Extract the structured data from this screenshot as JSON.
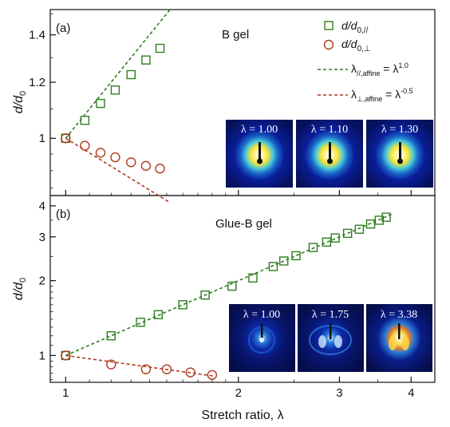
{
  "chart_data": [
    {
      "type": "scatter",
      "panel_label": "(a)",
      "title": "B gel",
      "ylabel": "d/d",
      "ylabel_sub": "0",
      "xscale": "log",
      "yscale": "log",
      "xlim": [
        0.94,
        4.4
      ],
      "ylim": [
        0.83,
        1.52
      ],
      "y_ticks": [
        1,
        1.2,
        1.4
      ],
      "y_tick_labels": [
        "1",
        "1.2",
        "1.4"
      ],
      "series": [
        {
          "name": "d/d",
          "name_sub": "0,//",
          "marker": "square",
          "color": "#2e7d1f",
          "x": [
            1.0,
            1.08,
            1.15,
            1.22,
            1.3,
            1.38,
            1.46
          ],
          "y": [
            1.0,
            1.06,
            1.12,
            1.17,
            1.23,
            1.29,
            1.34
          ]
        },
        {
          "name": "d/d",
          "name_sub": "0,⊥",
          "marker": "circle",
          "color": "#b03a1e",
          "x": [
            1.0,
            1.08,
            1.15,
            1.22,
            1.3,
            1.38,
            1.46
          ],
          "y": [
            1.0,
            0.976,
            0.954,
            0.94,
            0.925,
            0.914,
            0.906
          ]
        }
      ],
      "lines": [
        {
          "name": "λ",
          "name_sub": "//,affine",
          "name_eq": " = λ",
          "name_sup": "1.0",
          "style": "dashed",
          "color": "#2e7d1f",
          "exponent": 1.0,
          "x_range": [
            1.0,
            1.52
          ]
        },
        {
          "name": "λ",
          "name_sub": "⊥,affine",
          "name_eq": " = λ",
          "name_sup": "-0.5",
          "style": "dashed",
          "color": "#b03a1e",
          "exponent": -0.5,
          "x_range": [
            1.0,
            1.52
          ]
        }
      ],
      "insets": [
        {
          "label": "λ = 1.00"
        },
        {
          "label": "λ = 1.10"
        },
        {
          "label": "λ = 1.30"
        }
      ]
    },
    {
      "type": "scatter",
      "panel_label": "(b)",
      "title": "Glue-B gel",
      "xlabel": "Stretch ratio, λ",
      "ylabel": "d/d",
      "ylabel_sub": "0",
      "xscale": "log",
      "yscale": "log",
      "xlim": [
        0.94,
        4.4
      ],
      "ylim": [
        0.78,
        4.4
      ],
      "x_ticks": [
        1,
        2,
        3,
        4
      ],
      "x_tick_labels": [
        "1",
        "2",
        "3",
        "4"
      ],
      "y_ticks": [
        1,
        2,
        3,
        4
      ],
      "y_tick_labels": [
        "1",
        "2",
        "3",
        "4"
      ],
      "series": [
        {
          "name": "d/d",
          "name_sub": "0,//",
          "marker": "square",
          "color": "#2e7d1f",
          "x": [
            1.0,
            1.2,
            1.35,
            1.45,
            1.6,
            1.75,
            1.95,
            2.12,
            2.3,
            2.4,
            2.52,
            2.7,
            2.85,
            2.95,
            3.1,
            3.25,
            3.4,
            3.52,
            3.62
          ],
          "y": [
            1.0,
            1.2,
            1.36,
            1.46,
            1.6,
            1.75,
            1.9,
            2.05,
            2.28,
            2.4,
            2.52,
            2.72,
            2.86,
            2.97,
            3.1,
            3.22,
            3.38,
            3.5,
            3.6
          ]
        },
        {
          "name": "d/d",
          "name_sub": "0,⊥",
          "marker": "circle",
          "color": "#b03a1e",
          "x": [
            1.0,
            1.2,
            1.38,
            1.5,
            1.65,
            1.8
          ],
          "y": [
            1.0,
            0.92,
            0.88,
            0.88,
            0.855,
            0.835
          ]
        }
      ],
      "lines": [
        {
          "name": "λ",
          "name_sub": "//,affine",
          "style": "dashed",
          "color": "#2e7d1f",
          "exponent": 1.0,
          "x_range": [
            1.0,
            3.7
          ]
        },
        {
          "name": "λ",
          "name_sub": "⊥,affine",
          "style": "dashed",
          "color": "#b03a1e",
          "exponent": -0.32,
          "x_range": [
            1.0,
            1.82
          ]
        }
      ],
      "insets": [
        {
          "label": "λ = 1.00"
        },
        {
          "label": "λ = 1.75"
        },
        {
          "label": "λ = 3.38"
        }
      ]
    }
  ]
}
